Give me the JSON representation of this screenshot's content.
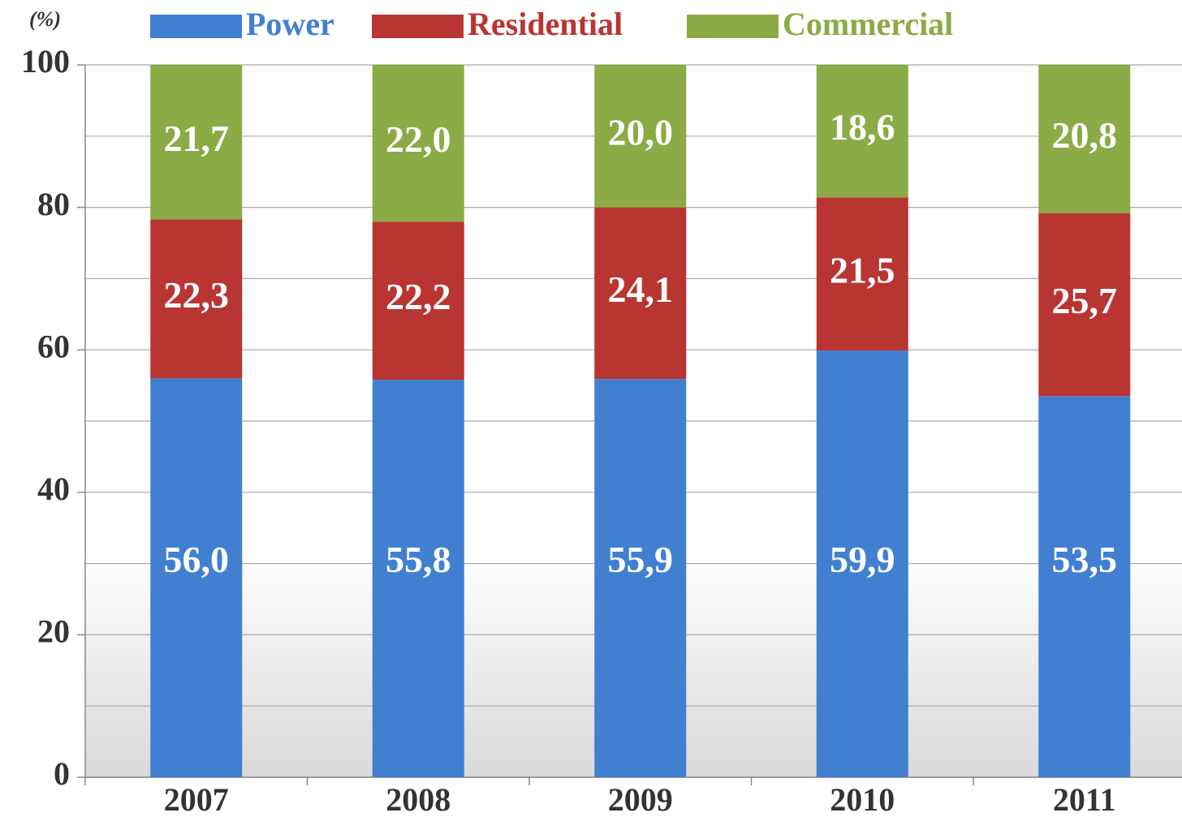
{
  "chart_data": {
    "type": "stacked_bar",
    "y_label": "(%)",
    "categories": [
      "2007",
      "2008",
      "2009",
      "2010",
      "2011"
    ],
    "series": [
      {
        "name": "Power",
        "color": "#4180d0",
        "values": [
          56.0,
          55.8,
          55.9,
          59.9,
          53.5
        ],
        "value_labels": [
          "56,0",
          "55,8",
          "55,9",
          "59,9",
          "53,5"
        ]
      },
      {
        "name": "Residential",
        "color": "#b83532",
        "values": [
          22.3,
          22.2,
          24.1,
          21.5,
          25.7
        ],
        "value_labels": [
          "22,3",
          "22,2",
          "24,1",
          "21,5",
          "25,7"
        ]
      },
      {
        "name": "Commercial",
        "color": "#8aab45",
        "values": [
          21.7,
          22.0,
          20.0,
          18.6,
          20.8
        ],
        "value_labels": [
          "21,7",
          "22,0",
          "20,0",
          "18,6",
          "20,8"
        ]
      }
    ],
    "ylim": [
      0,
      100
    ],
    "yticks": [
      0,
      20,
      40,
      60,
      80,
      100
    ],
    "grid": true,
    "legend": "top"
  }
}
